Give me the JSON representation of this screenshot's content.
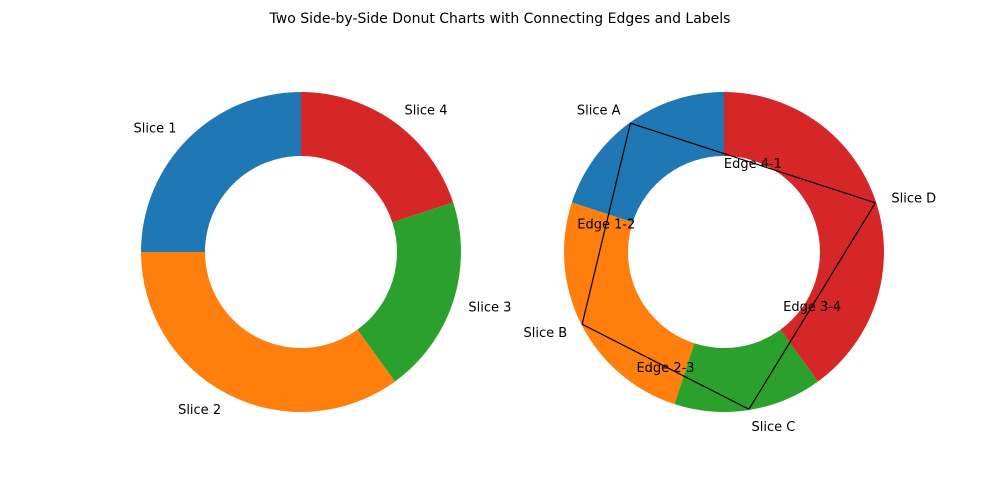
{
  "title": "Two Side-by-Side Donut Charts with Connecting Edges and Labels",
  "chart_data": [
    {
      "type": "pie",
      "variant": "donut",
      "title": "",
      "start_angle_deg": 90,
      "direction": "counterclockwise",
      "slices": [
        {
          "label": "Slice 1",
          "value": 25,
          "color": "#1f77b4"
        },
        {
          "label": "Slice 2",
          "value": 35,
          "color": "#ff7f0e"
        },
        {
          "label": "Slice 3",
          "value": 20,
          "color": "#2ca02c"
        },
        {
          "label": "Slice 4",
          "value": 20,
          "color": "#d62728"
        }
      ]
    },
    {
      "type": "pie",
      "variant": "donut",
      "title": "",
      "start_angle_deg": 90,
      "direction": "counterclockwise",
      "slices": [
        {
          "label": "Slice A",
          "value": 20,
          "color": "#1f77b4"
        },
        {
          "label": "Slice B",
          "value": 25,
          "color": "#ff7f0e"
        },
        {
          "label": "Slice C",
          "value": 15,
          "color": "#2ca02c"
        },
        {
          "label": "Slice D",
          "value": 40,
          "color": "#d62728"
        }
      ],
      "edges": [
        {
          "label": "Edge 1-2",
          "from": "Slice A",
          "to": "Slice B"
        },
        {
          "label": "Edge 2-3",
          "from": "Slice B",
          "to": "Slice C"
        },
        {
          "label": "Edge 3-4",
          "from": "Slice C",
          "to": "Slice D"
        },
        {
          "label": "Edge 4-1",
          "from": "Slice D",
          "to": "Slice A"
        }
      ]
    }
  ]
}
